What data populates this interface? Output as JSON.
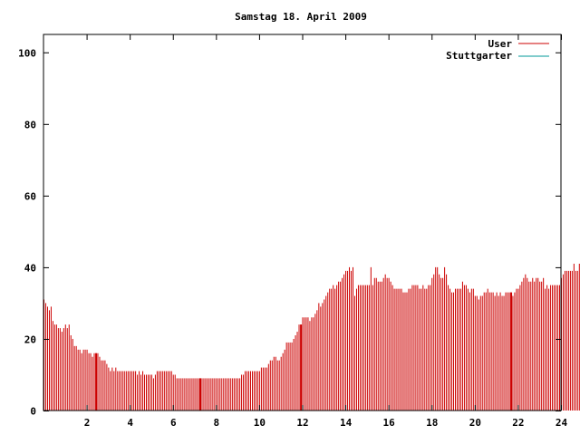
{
  "chart_data": {
    "type": "bar",
    "title": "Samstag 18. April 2009",
    "xlabel": "",
    "ylabel": "",
    "xlim": [
      0,
      24
    ],
    "ylim": [
      0,
      105
    ],
    "x_ticks": [
      "2",
      "4",
      "6",
      "8",
      "10",
      "12",
      "14",
      "16",
      "18",
      "20",
      "22",
      "24"
    ],
    "y_ticks": [
      "0",
      "20",
      "40",
      "60",
      "80",
      "100"
    ],
    "legend_position": "top-right",
    "grid": false,
    "series": [
      {
        "name": "User",
        "color": "#cc0000",
        "x_start": 0,
        "x_step": 0.08333,
        "values": [
          31,
          30,
          29,
          28,
          29,
          25,
          24,
          24,
          23,
          23,
          22,
          23,
          24,
          23,
          24,
          21,
          20,
          18,
          18,
          17,
          17,
          16,
          17,
          17,
          17,
          16,
          16,
          15,
          16,
          16,
          16,
          15,
          14,
          14,
          14,
          13,
          12,
          11,
          12,
          11,
          12,
          11,
          11,
          11,
          11,
          11,
          11,
          11,
          11,
          11,
          11,
          11,
          10,
          11,
          10,
          11,
          10,
          10,
          10,
          10,
          10,
          9,
          10,
          11,
          11,
          11,
          11,
          11,
          11,
          11,
          11,
          11,
          10,
          10,
          9,
          9,
          9,
          9,
          9,
          9,
          9,
          9,
          9,
          9,
          9,
          9,
          9,
          9,
          9,
          9,
          9,
          9,
          9,
          9,
          9,
          9,
          9,
          9,
          9,
          9,
          9,
          9,
          9,
          9,
          9,
          9,
          9,
          9,
          9,
          9,
          10,
          10,
          11,
          11,
          11,
          11,
          11,
          11,
          11,
          11,
          11,
          12,
          12,
          12,
          12,
          13,
          14,
          14,
          15,
          15,
          14,
          14,
          15,
          16,
          17,
          19,
          19,
          19,
          19,
          20,
          21,
          22,
          24,
          24,
          26,
          26,
          26,
          26,
          25,
          26,
          26,
          27,
          28,
          30,
          29,
          30,
          31,
          32,
          33,
          34,
          34,
          35,
          34,
          35,
          36,
          36,
          37,
          38,
          39,
          39,
          40,
          39,
          40,
          32,
          34,
          35,
          35,
          35,
          35,
          35,
          35,
          35,
          40,
          35,
          37,
          37,
          36,
          36,
          36,
          37,
          38,
          37,
          37,
          36,
          35,
          34,
          34,
          34,
          34,
          34,
          33,
          33,
          33,
          34,
          34,
          35,
          35,
          35,
          35,
          34,
          34,
          35,
          34,
          34,
          35,
          35,
          37,
          38,
          40,
          40,
          38,
          37,
          37,
          40,
          38,
          35,
          34,
          33,
          33,
          34,
          34,
          34,
          34,
          36,
          35,
          35,
          34,
          33,
          34,
          34,
          32,
          32,
          31,
          32,
          32,
          33,
          33,
          34,
          33,
          33,
          33,
          32,
          33,
          32,
          33,
          32,
          32,
          33,
          33,
          33,
          33,
          32,
          33,
          34,
          34,
          35,
          36,
          37,
          38,
          37,
          36,
          36,
          37,
          36,
          37,
          37,
          36,
          36,
          37,
          34,
          35,
          34,
          35,
          35,
          35,
          35,
          35,
          35,
          37,
          38,
          39,
          39,
          39,
          39,
          39,
          41,
          39,
          39,
          41,
          40,
          40,
          40,
          40,
          39,
          38,
          37,
          36,
          36,
          36,
          36,
          37,
          36,
          37,
          37,
          37,
          37,
          36,
          37,
          36,
          34
        ]
      },
      {
        "name": "Stuttgarter",
        "color": "#009999",
        "values": []
      }
    ],
    "highlight_x": [
      2.42,
      7.25,
      11.92,
      21.67
    ]
  }
}
